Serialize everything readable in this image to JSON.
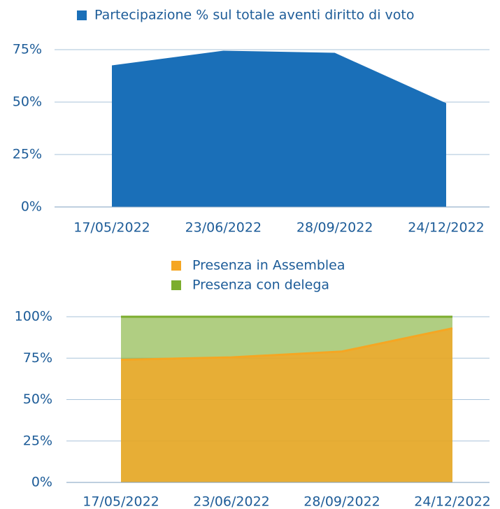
{
  "chart_data": [
    {
      "type": "area",
      "categories": [
        "17/05/2022",
        "23/06/2022",
        "28/09/2022",
        "24/12/2022"
      ],
      "series": [
        {
          "name": "Partecipazione % sul totale aventi diritto di voto",
          "color": "#1a6fb8",
          "values": [
            67.5,
            74.5,
            73.5,
            49.5
          ]
        }
      ],
      "ylim": [
        0,
        75
      ],
      "yticks": [
        {
          "value": 0,
          "label": "0%"
        },
        {
          "value": 25,
          "label": "25%"
        },
        {
          "value": 50,
          "label": "50%"
        },
        {
          "value": 75,
          "label": "75%"
        }
      ],
      "grid": true
    },
    {
      "type": "stacked_area",
      "categories": [
        "17/05/2022",
        "23/06/2022",
        "28/09/2022",
        "24/12/2022"
      ],
      "series": [
        {
          "name": "Presenza in Assemblea",
          "color": "#f5a623",
          "values": [
            74,
            75.5,
            79,
            93
          ]
        },
        {
          "name": "Presenza con delega",
          "color": "#7cad2e",
          "values": [
            26,
            24.5,
            21,
            7
          ]
        }
      ],
      "ylim": [
        0,
        100
      ],
      "yticks": [
        {
          "value": 0,
          "label": "0%"
        },
        {
          "value": 25,
          "label": "25%"
        },
        {
          "value": 50,
          "label": "50%"
        },
        {
          "value": 75,
          "label": "75%"
        },
        {
          "value": 100,
          "label": "100%"
        }
      ],
      "grid": true
    }
  ]
}
